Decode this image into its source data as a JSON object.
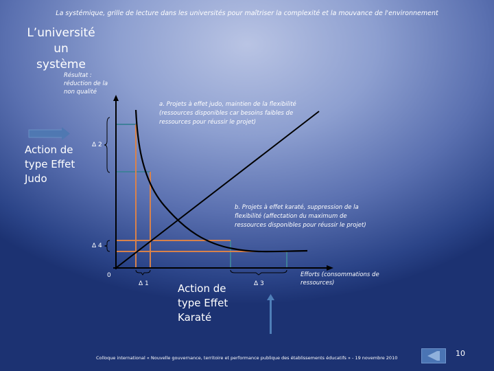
{
  "header": {
    "subtitle": "La systémique, grille de lecture dans les universités pour maîtriser la complexité et la mouvance de l'environnement"
  },
  "title_lines": [
    "L’université un",
    "système"
  ],
  "result_label": "Résultat : réduction de la non qualité",
  "note_a": "a. Projets à effet judo, maintien de la flexibilité (ressources disponibles car besoins faibles de ressources pour réussir le projet)",
  "note_b": "b. Projets à effet karaté, suppression de la flexibilité (affectation du maximum de ressources disponibles pour réussir le projet)",
  "judo_label": "Action de type Effet Judo",
  "karate_label": "Action de type Effet Karaté",
  "x_axis_label": "Efforts (consommations de ressources)",
  "origin": "0",
  "deltas": {
    "d1": "Δ 1",
    "d2": "Δ 2",
    "d3": "Δ 3",
    "d4": "Δ 4"
  },
  "footer": "Colloque international « Nouvelle gouvernance, territoire et performance publique des établissements éducatifs » - 19 novembre 2010",
  "page_number": "10",
  "colors": {
    "orange": "#d9824a",
    "teal": "#3f7f9a",
    "curve": "#000000"
  }
}
